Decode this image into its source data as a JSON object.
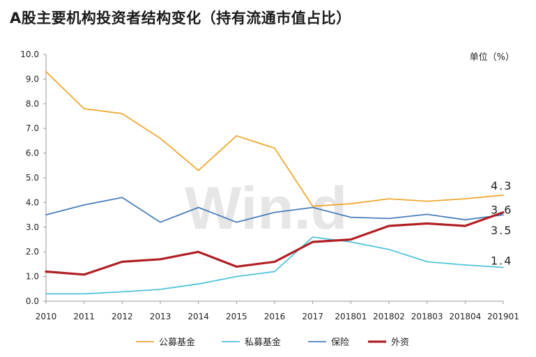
{
  "title": "A股主要机构投资者结构变化（持有流通市值占比）",
  "watermark": "Win.d",
  "chart_data": {
    "type": "line",
    "unit_label": "单位（%）",
    "categories": [
      "2010",
      "2011",
      "2012",
      "2013",
      "2014",
      "2015",
      "2016",
      "2017",
      "201801",
      "201802",
      "201803",
      "201804",
      "201901"
    ],
    "ylim": [
      0,
      10
    ],
    "yticks": [
      "0.0",
      "1.0",
      "2.0",
      "3.0",
      "4.0",
      "5.0",
      "6.0",
      "7.0",
      "8.0",
      "9.0",
      "10.0"
    ],
    "grid": false,
    "legend_position": "bottom",
    "series": [
      {
        "name": "公募基金",
        "color": "#F0A830",
        "width": 1.8,
        "values": [
          9.3,
          7.8,
          7.6,
          6.6,
          5.3,
          6.7,
          6.2,
          3.85,
          3.95,
          4.15,
          4.05,
          4.15,
          4.3
        ],
        "end_label": "4.3"
      },
      {
        "name": "私募基金",
        "color": "#4FC3D9",
        "width": 1.8,
        "values": [
          0.3,
          0.3,
          0.38,
          0.48,
          0.7,
          1.0,
          1.2,
          2.6,
          2.4,
          2.1,
          1.6,
          1.47,
          1.37
        ],
        "end_label": "1.4"
      },
      {
        "name": "保险",
        "color": "#4A7EBB",
        "width": 1.8,
        "values": [
          3.5,
          3.9,
          4.2,
          3.2,
          3.8,
          3.2,
          3.6,
          3.8,
          3.4,
          3.35,
          3.52,
          3.3,
          3.5
        ],
        "end_label": "3.5"
      },
      {
        "name": "外资",
        "color": "#B01F24",
        "width": 3.2,
        "values": [
          1.2,
          1.08,
          1.6,
          1.7,
          2.0,
          1.4,
          1.6,
          2.4,
          2.5,
          3.05,
          3.15,
          3.05,
          3.6
        ],
        "end_label": "3.6"
      }
    ]
  }
}
